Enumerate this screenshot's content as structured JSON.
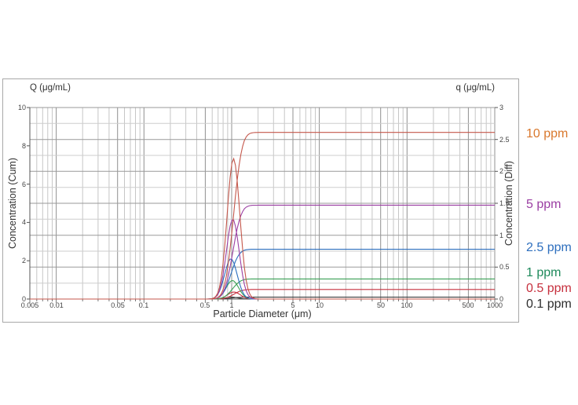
{
  "chart_data": {
    "type": "line",
    "description": "Particle size distribution: cumulative and differential concentration curves for six sample concentrations",
    "x_axis": {
      "label": "Particle Diameter (μm)",
      "scale": "log",
      "min": 0.005,
      "max": 1000,
      "major_ticks": [
        0.005,
        0.01,
        0.05,
        0.1,
        0.5,
        1,
        5,
        10,
        50,
        100,
        500,
        1000
      ]
    },
    "y_left": {
      "header": "Q (μg/mL)",
      "label": "Concentration (Cum)",
      "min": 0,
      "max": 10,
      "ticks": [
        0,
        2,
        4,
        6,
        8,
        10
      ]
    },
    "y_right": {
      "header": "q (μg/mL)",
      "label": "Concentration (Diff)",
      "min": 0,
      "max": 3,
      "ticks": [
        0,
        0.5,
        1,
        1.5,
        2,
        2.5,
        3
      ]
    },
    "grid": true,
    "legend_position": "right-outside",
    "log_normal_sigma_decades": 0.075,
    "series": [
      {
        "name": "10 ppm",
        "color": "#c4574b",
        "legend_color": "#d9782d",
        "cumulative_plateau_ug_ml": 8.7,
        "diff_peak_ug_ml": 2.2,
        "median_diameter_um": 1.05
      },
      {
        "name": "5 ppm",
        "color": "#9b3fa3",
        "legend_color": "#9b3fa3",
        "cumulative_plateau_ug_ml": 4.9,
        "diff_peak_ug_ml": 1.25,
        "median_diameter_um": 1.03
      },
      {
        "name": "2.5 ppm",
        "color": "#2e6fbe",
        "legend_color": "#2e6fbe",
        "cumulative_plateau_ug_ml": 2.6,
        "diff_peak_ug_ml": 0.63,
        "median_diameter_um": 0.98
      },
      {
        "name": "1 ppm",
        "color": "#3aa054",
        "legend_color": "#1f8a5c",
        "cumulative_plateau_ug_ml": 1.05,
        "diff_peak_ug_ml": 0.29,
        "median_diameter_um": 1.02
      },
      {
        "name": "0.5 ppm",
        "color": "#c6303e",
        "legend_color": "#c6303e",
        "cumulative_plateau_ug_ml": 0.5,
        "diff_peak_ug_ml": 0.11,
        "median_diameter_um": 1.06
      },
      {
        "name": "0.1 ppm",
        "color": "#3c3c3c",
        "legend_color": "#2e2e2e",
        "cumulative_plateau_ug_ml": 0.1,
        "diff_peak_ug_ml": 0.03,
        "median_diameter_um": 1.0
      }
    ]
  }
}
